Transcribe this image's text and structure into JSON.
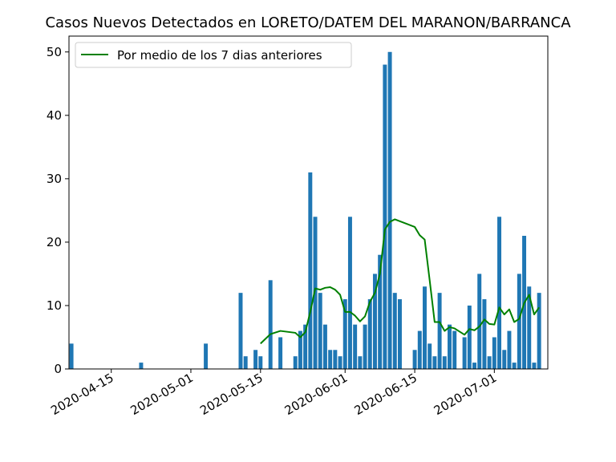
{
  "chart_data": {
    "type": "bar",
    "title": "Casos Nuevos Detectados en LORETO/DATEM DEL MARANON/BARRANCA",
    "xlabel": "",
    "ylabel": "",
    "x_range": [
      "2020-04-07",
      "2020-07-12"
    ],
    "ylim": [
      0,
      52.5
    ],
    "yticks": [
      0,
      10,
      20,
      30,
      40,
      50
    ],
    "xticks": [
      "2020-04-15",
      "2020-05-01",
      "2020-05-15",
      "2020-06-01",
      "2020-06-15",
      "2020-07-01"
    ],
    "grid": false,
    "legend": {
      "position": "top-left",
      "entries": [
        "Por medio de los 7 dias anteriores"
      ]
    },
    "bar_color": "#1f77b4",
    "line_color": "#008000",
    "series": [
      {
        "type": "bar",
        "points": [
          [
            "2020-04-07",
            4
          ],
          [
            "2020-04-21",
            1
          ],
          [
            "2020-05-04",
            4
          ],
          [
            "2020-05-11",
            12
          ],
          [
            "2020-05-12",
            2
          ],
          [
            "2020-05-14",
            3
          ],
          [
            "2020-05-15",
            2
          ],
          [
            "2020-05-17",
            14
          ],
          [
            "2020-05-19",
            5
          ],
          [
            "2020-05-22",
            2
          ],
          [
            "2020-05-23",
            6
          ],
          [
            "2020-05-24",
            7
          ],
          [
            "2020-05-25",
            31
          ],
          [
            "2020-05-26",
            24
          ],
          [
            "2020-05-27",
            12
          ],
          [
            "2020-05-28",
            7
          ],
          [
            "2020-05-29",
            3
          ],
          [
            "2020-05-30",
            3
          ],
          [
            "2020-05-31",
            2
          ],
          [
            "2020-06-01",
            11
          ],
          [
            "2020-06-02",
            24
          ],
          [
            "2020-06-03",
            7
          ],
          [
            "2020-06-04",
            2
          ],
          [
            "2020-06-05",
            7
          ],
          [
            "2020-06-06",
            11
          ],
          [
            "2020-06-07",
            15
          ],
          [
            "2020-06-08",
            18
          ],
          [
            "2020-06-09",
            48
          ],
          [
            "2020-06-10",
            50
          ],
          [
            "2020-06-11",
            12
          ],
          [
            "2020-06-12",
            11
          ],
          [
            "2020-06-15",
            3
          ],
          [
            "2020-06-16",
            6
          ],
          [
            "2020-06-17",
            13
          ],
          [
            "2020-06-18",
            4
          ],
          [
            "2020-06-19",
            2
          ],
          [
            "2020-06-20",
            12
          ],
          [
            "2020-06-21",
            2
          ],
          [
            "2020-06-22",
            7
          ],
          [
            "2020-06-23",
            6
          ],
          [
            "2020-06-25",
            5
          ],
          [
            "2020-06-26",
            10
          ],
          [
            "2020-06-27",
            1
          ],
          [
            "2020-06-28",
            15
          ],
          [
            "2020-06-29",
            11
          ],
          [
            "2020-06-30",
            2
          ],
          [
            "2020-07-01",
            5
          ],
          [
            "2020-07-02",
            24
          ],
          [
            "2020-07-03",
            3
          ],
          [
            "2020-07-04",
            6
          ],
          [
            "2020-07-05",
            1
          ],
          [
            "2020-07-06",
            15
          ],
          [
            "2020-07-07",
            21
          ],
          [
            "2020-07-08",
            13
          ],
          [
            "2020-07-09",
            1
          ],
          [
            "2020-07-10",
            12
          ]
        ]
      },
      {
        "type": "line",
        "name": "Por medio de los 7 dias anteriores",
        "points": [
          [
            "2020-05-15",
            4.0
          ],
          [
            "2020-05-17",
            5.5
          ],
          [
            "2020-05-19",
            6.0
          ],
          [
            "2020-05-22",
            5.7
          ],
          [
            "2020-05-23",
            5.0
          ],
          [
            "2020-05-24",
            5.8
          ],
          [
            "2020-05-25",
            9.0
          ],
          [
            "2020-05-26",
            12.7
          ],
          [
            "2020-05-27",
            12.5
          ],
          [
            "2020-05-28",
            12.8
          ],
          [
            "2020-05-29",
            12.9
          ],
          [
            "2020-05-30",
            12.5
          ],
          [
            "2020-05-31",
            11.7
          ],
          [
            "2020-06-01",
            9.0
          ],
          [
            "2020-06-02",
            9.0
          ],
          [
            "2020-06-03",
            8.4
          ],
          [
            "2020-06-04",
            7.5
          ],
          [
            "2020-06-05",
            8.3
          ],
          [
            "2020-06-06",
            10.6
          ],
          [
            "2020-06-07",
            12.0
          ],
          [
            "2020-06-08",
            15.0
          ],
          [
            "2020-06-09",
            22.0
          ],
          [
            "2020-06-10",
            23.2
          ],
          [
            "2020-06-11",
            23.6
          ],
          [
            "2020-06-12",
            23.3
          ],
          [
            "2020-06-15",
            22.4
          ],
          [
            "2020-06-16",
            21.1
          ],
          [
            "2020-06-17",
            20.4
          ],
          [
            "2020-06-18",
            14.0
          ],
          [
            "2020-06-19",
            7.4
          ],
          [
            "2020-06-20",
            7.4
          ],
          [
            "2020-06-21",
            6.0
          ],
          [
            "2020-06-22",
            6.6
          ],
          [
            "2020-06-23",
            6.4
          ],
          [
            "2020-06-25",
            5.4
          ],
          [
            "2020-06-26",
            6.3
          ],
          [
            "2020-06-27",
            6.1
          ],
          [
            "2020-06-28",
            6.7
          ],
          [
            "2020-06-29",
            7.8
          ],
          [
            "2020-06-30",
            7.1
          ],
          [
            "2020-07-01",
            7.0
          ],
          [
            "2020-07-02",
            9.7
          ],
          [
            "2020-07-03",
            8.6
          ],
          [
            "2020-07-04",
            9.4
          ],
          [
            "2020-07-05",
            7.4
          ],
          [
            "2020-07-06",
            7.9
          ],
          [
            "2020-07-07",
            10.4
          ],
          [
            "2020-07-08",
            11.7
          ],
          [
            "2020-07-09",
            8.6
          ],
          [
            "2020-07-10",
            9.7
          ]
        ]
      }
    ]
  }
}
